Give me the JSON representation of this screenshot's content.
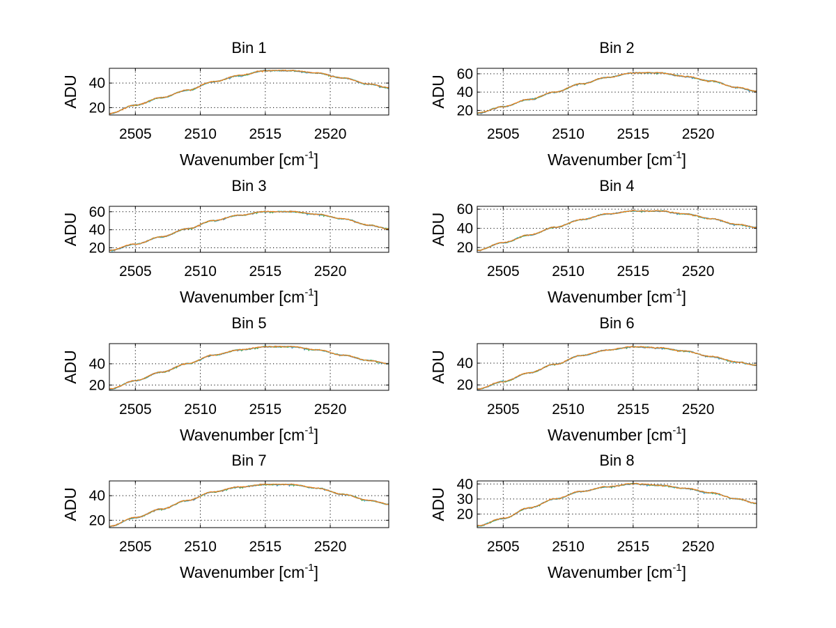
{
  "chart_data": [
    {
      "type": "line",
      "title": "Bin 1",
      "xlabel": "Wavenumber [cm",
      "xlabel_sup": "-1",
      "xlabel_close": "]",
      "ylabel": "ADU",
      "xlim": [
        2503.0,
        2524.5
      ],
      "ylim": [
        14,
        52
      ],
      "grid": true,
      "xticks": [
        2505,
        2510,
        2515,
        2520
      ],
      "yticks": [
        20,
        40
      ],
      "x": [
        2503,
        2505,
        2507,
        2509,
        2511,
        2513,
        2515,
        2517,
        2519,
        2521,
        2523,
        2524.5
      ],
      "y": [
        15,
        22,
        28,
        34,
        41,
        46,
        50,
        50,
        48,
        44,
        39,
        36
      ]
    },
    {
      "type": "line",
      "title": "Bin 2",
      "xlabel": "Wavenumber [cm",
      "xlabel_sup": "-1",
      "xlabel_close": "]",
      "ylabel": "ADU",
      "xlim": [
        2503.0,
        2524.5
      ],
      "ylim": [
        15,
        66
      ],
      "grid": true,
      "xticks": [
        2505,
        2510,
        2515,
        2520
      ],
      "yticks": [
        20,
        40,
        60
      ],
      "x": [
        2503,
        2505,
        2507,
        2509,
        2511,
        2513,
        2515,
        2517,
        2519,
        2521,
        2523,
        2524.5
      ],
      "y": [
        17,
        24,
        32,
        40,
        49,
        56,
        61,
        61,
        57,
        52,
        45,
        41
      ]
    },
    {
      "type": "line",
      "title": "Bin 3",
      "xlabel": "Wavenumber [cm",
      "xlabel_sup": "-1",
      "xlabel_close": "]",
      "ylabel": "ADU",
      "xlim": [
        2503.0,
        2524.5
      ],
      "ylim": [
        15,
        66
      ],
      "grid": true,
      "xticks": [
        2505,
        2510,
        2515,
        2520
      ],
      "yticks": [
        20,
        40,
        60
      ],
      "x": [
        2503,
        2505,
        2507,
        2509,
        2511,
        2513,
        2515,
        2517,
        2519,
        2521,
        2523,
        2524.5
      ],
      "y": [
        17,
        24,
        32,
        41,
        50,
        56,
        60,
        60,
        57,
        52,
        45,
        41
      ]
    },
    {
      "type": "line",
      "title": "Bin 4",
      "xlabel": "Wavenumber [cm",
      "xlabel_sup": "-1",
      "xlabel_close": "]",
      "ylabel": "ADU",
      "xlim": [
        2503.0,
        2524.5
      ],
      "ylim": [
        15,
        63
      ],
      "grid": true,
      "xticks": [
        2505,
        2510,
        2515,
        2520
      ],
      "yticks": [
        20,
        40,
        60
      ],
      "x": [
        2503,
        2505,
        2507,
        2509,
        2511,
        2513,
        2515,
        2517,
        2519,
        2521,
        2523,
        2524.5
      ],
      "y": [
        17,
        25,
        33,
        41,
        49,
        55,
        58,
        58,
        55,
        50,
        44,
        41
      ]
    },
    {
      "type": "line",
      "title": "Bin 5",
      "xlabel": "Wavenumber [cm",
      "xlabel_sup": "-1",
      "xlabel_close": "]",
      "ylabel": "ADU",
      "xlim": [
        2503.0,
        2524.5
      ],
      "ylim": [
        15,
        59
      ],
      "grid": true,
      "xticks": [
        2505,
        2510,
        2515,
        2520
      ],
      "yticks": [
        20,
        40
      ],
      "x": [
        2503,
        2505,
        2507,
        2509,
        2511,
        2513,
        2515,
        2517,
        2519,
        2521,
        2523,
        2524.5
      ],
      "y": [
        16,
        24,
        32,
        40,
        48,
        53,
        56,
        56,
        53,
        48,
        43,
        40
      ]
    },
    {
      "type": "line",
      "title": "Bin 6",
      "xlabel": "Wavenumber [cm",
      "xlabel_sup": "-1",
      "xlabel_close": "]",
      "ylabel": "ADU",
      "xlim": [
        2503.0,
        2524.5
      ],
      "ylim": [
        15,
        58
      ],
      "grid": true,
      "xticks": [
        2505,
        2510,
        2515,
        2520
      ],
      "yticks": [
        20,
        40
      ],
      "x": [
        2503,
        2505,
        2507,
        2509,
        2511,
        2513,
        2515,
        2517,
        2519,
        2521,
        2523,
        2524.5
      ],
      "y": [
        16,
        23,
        31,
        39,
        47,
        52,
        55,
        54,
        51,
        46,
        41,
        38
      ]
    },
    {
      "type": "line",
      "title": "Bin 7",
      "xlabel": "Wavenumber [cm",
      "xlabel_sup": "-1",
      "xlabel_close": "]",
      "ylabel": "ADU",
      "xlim": [
        2503.0,
        2524.5
      ],
      "ylim": [
        14,
        52
      ],
      "grid": true,
      "xticks": [
        2505,
        2510,
        2515,
        2520
      ],
      "yticks": [
        20,
        40
      ],
      "x": [
        2503,
        2505,
        2507,
        2509,
        2511,
        2513,
        2515,
        2517,
        2519,
        2521,
        2523,
        2524.5
      ],
      "y": [
        15,
        22,
        29,
        36,
        43,
        47,
        49,
        49,
        46,
        41,
        36,
        33
      ]
    },
    {
      "type": "line",
      "title": "Bin 8",
      "xlabel": "Wavenumber [cm",
      "xlabel_sup": "-1",
      "xlabel_close": "]",
      "ylabel": "ADU",
      "xlim": [
        2503.0,
        2524.5
      ],
      "ylim": [
        11,
        42
      ],
      "grid": true,
      "xticks": [
        2505,
        2510,
        2515,
        2520
      ],
      "yticks": [
        20,
        30,
        40
      ],
      "x": [
        2503,
        2505,
        2507,
        2509,
        2511,
        2513,
        2515,
        2517,
        2519,
        2521,
        2523,
        2524.5
      ],
      "y": [
        12,
        17,
        24,
        30,
        35,
        38,
        40,
        39,
        37,
        34,
        30,
        27
      ]
    }
  ],
  "series_colors": [
    "#1f77b4",
    "#2ca02c",
    "#17becf",
    "#7f7f7f",
    "#ff7f0e"
  ]
}
